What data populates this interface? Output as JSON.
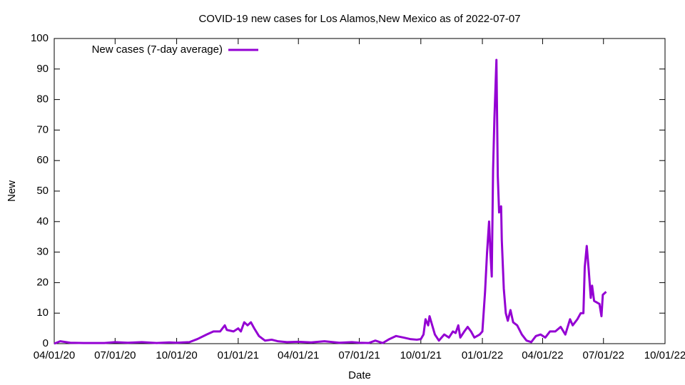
{
  "chart_data": {
    "type": "line",
    "title": "COVID-19 new cases for Los Alamos,New Mexico as of 2022-07-07",
    "x_label": "Date",
    "y_label": "New",
    "legend": "top-left",
    "x": [
      "2020-04-01",
      "2020-04-10",
      "2020-04-25",
      "2020-05-15",
      "2020-06-15",
      "2020-07-01",
      "2020-07-20",
      "2020-08-10",
      "2020-09-01",
      "2020-09-20",
      "2020-10-01",
      "2020-10-20",
      "2020-11-01",
      "2020-11-15",
      "2020-11-25",
      "2020-12-05",
      "2020-12-12",
      "2020-12-15",
      "2020-12-25",
      "2021-01-01",
      "2021-01-05",
      "2021-01-10",
      "2021-01-15",
      "2021-01-20",
      "2021-01-25",
      "2021-02-01",
      "2021-02-10",
      "2021-02-20",
      "2021-03-01",
      "2021-03-15",
      "2021-04-01",
      "2021-04-20",
      "2021-05-10",
      "2021-06-01",
      "2021-06-20",
      "2021-07-01",
      "2021-07-15",
      "2021-07-25",
      "2021-08-05",
      "2021-08-15",
      "2021-08-25",
      "2021-09-05",
      "2021-09-15",
      "2021-09-25",
      "2021-10-01",
      "2021-10-05",
      "2021-10-08",
      "2021-10-12",
      "2021-10-14",
      "2021-10-18",
      "2021-10-22",
      "2021-10-28",
      "2021-11-05",
      "2021-11-12",
      "2021-11-18",
      "2021-11-22",
      "2021-11-26",
      "2021-11-29",
      "2021-12-05",
      "2021-12-10",
      "2021-12-15",
      "2021-12-20",
      "2021-12-28",
      "2022-01-01",
      "2022-01-05",
      "2022-01-08",
      "2022-01-11",
      "2022-01-13",
      "2022-01-15",
      "2022-01-17",
      "2022-01-19",
      "2022-01-22",
      "2022-01-24",
      "2022-01-26",
      "2022-01-29",
      "2022-01-30",
      "2022-02-02",
      "2022-02-05",
      "2022-02-08",
      "2022-02-12",
      "2022-02-16",
      "2022-02-22",
      "2022-03-01",
      "2022-03-08",
      "2022-03-15",
      "2022-03-22",
      "2022-03-29",
      "2022-04-05",
      "2022-04-12",
      "2022-04-20",
      "2022-04-28",
      "2022-05-05",
      "2022-05-12",
      "2022-05-16",
      "2022-05-23",
      "2022-05-28",
      "2022-06-01",
      "2022-06-03",
      "2022-06-06",
      "2022-06-09",
      "2022-06-12",
      "2022-06-14",
      "2022-06-17",
      "2022-06-25",
      "2022-06-28",
      "2022-06-30",
      "2022-07-05"
    ],
    "series": [
      {
        "name": "New cases (7-day average)",
        "color": "#9400d3",
        "values": [
          0,
          0.8,
          0.3,
          0.2,
          0.2,
          0.5,
          0.3,
          0.5,
          0.2,
          0.4,
          0.3,
          0.5,
          1.5,
          3,
          4,
          4,
          6,
          4.5,
          4,
          5,
          4,
          7,
          6,
          7,
          5,
          2.5,
          1,
          1.3,
          0.8,
          0.5,
          0.6,
          0.4,
          0.8,
          0.3,
          0.5,
          0.3,
          0.2,
          1,
          0.2,
          1.5,
          2.5,
          2,
          1.5,
          1.3,
          1.5,
          3,
          8,
          6,
          9,
          6,
          3,
          1,
          3,
          2,
          4,
          3.5,
          6,
          2,
          4,
          5.5,
          4,
          2,
          3,
          4,
          17,
          30,
          40,
          30,
          22,
          57,
          74,
          93,
          55,
          43,
          45,
          34,
          18,
          10,
          7.5,
          11,
          7,
          6,
          3,
          1,
          0.5,
          2.5,
          3,
          2,
          4,
          4,
          5.5,
          3,
          8,
          6,
          8,
          10,
          10,
          25,
          32,
          24,
          15,
          19,
          14,
          13,
          9,
          16,
          17
        ]
      }
    ],
    "xlim": [
      "2020-04-01",
      "2022-10-01"
    ],
    "xticks": [
      {
        "value": "2020-04-01",
        "label": "04/01/20"
      },
      {
        "value": "2020-07-01",
        "label": "07/01/20"
      },
      {
        "value": "2020-10-01",
        "label": "10/01/20"
      },
      {
        "value": "2021-01-01",
        "label": "01/01/21"
      },
      {
        "value": "2021-04-01",
        "label": "04/01/21"
      },
      {
        "value": "2021-07-01",
        "label": "07/01/21"
      },
      {
        "value": "2021-10-01",
        "label": "10/01/21"
      },
      {
        "value": "2022-01-01",
        "label": "01/01/22"
      },
      {
        "value": "2022-04-01",
        "label": "04/01/22"
      },
      {
        "value": "2022-07-01",
        "label": "07/01/22"
      },
      {
        "value": "2022-10-01",
        "label": "10/01/22"
      }
    ],
    "ylim": [
      0,
      100
    ],
    "yticks": [
      0,
      10,
      20,
      30,
      40,
      50,
      60,
      70,
      80,
      90,
      100
    ],
    "grid": false
  }
}
